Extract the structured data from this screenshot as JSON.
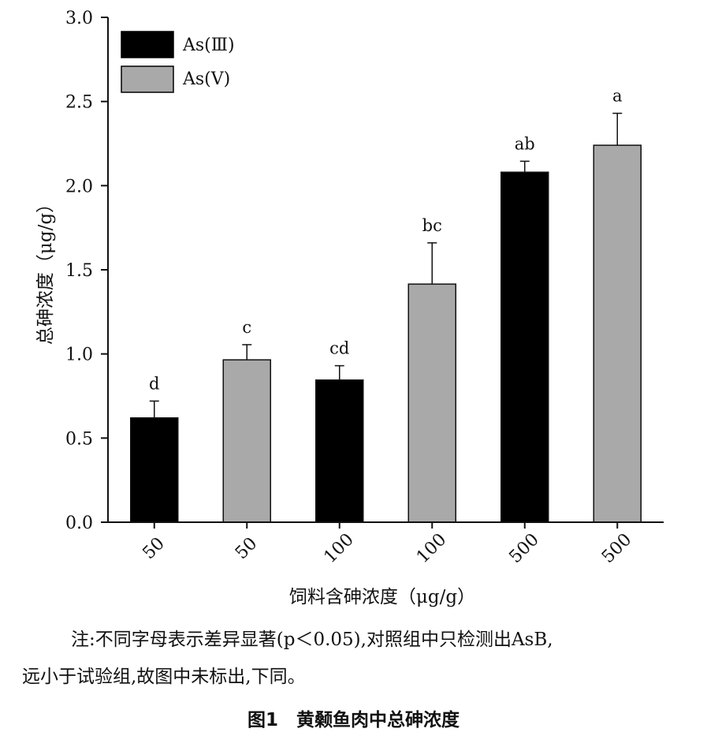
{
  "chart_data": {
    "type": "bar",
    "ylabel": "总砷浓度（μg/g）",
    "xlabel": "饲料含砷浓度（μg/g）",
    "ylim": [
      0,
      3.0
    ],
    "yticks": [
      "0.0",
      "0.5",
      "1.0",
      "1.5",
      "2.0",
      "2.5",
      "3.0"
    ],
    "categories": [
      "50",
      "50",
      "100",
      "100",
      "500",
      "500"
    ],
    "values": [
      0.62,
      0.965,
      0.845,
      1.415,
      2.08,
      2.24
    ],
    "errors": [
      0.1,
      0.09,
      0.085,
      0.245,
      0.065,
      0.19
    ],
    "bar_series": [
      "As(Ⅲ)",
      "As(Ⅴ)",
      "As(Ⅲ)",
      "As(Ⅴ)",
      "As(Ⅲ)",
      "As(Ⅴ)"
    ],
    "significance_labels": [
      "d",
      "c",
      "cd",
      "bc",
      "ab",
      "a"
    ],
    "legend": {
      "position": "top-left",
      "entries": [
        {
          "name": "As(Ⅲ)",
          "color": "#000000"
        },
        {
          "name": "As(Ⅴ)",
          "color": "#a9a9a9"
        }
      ]
    },
    "grid": false
  },
  "note": {
    "line1": "注:不同字母表示差异显著(p＜0.05),对照组中只检测出AsB,",
    "line2": "远小于试验组,故图中未标出,下同。"
  },
  "caption": "图1　黄颡鱼肉中总砷浓度"
}
